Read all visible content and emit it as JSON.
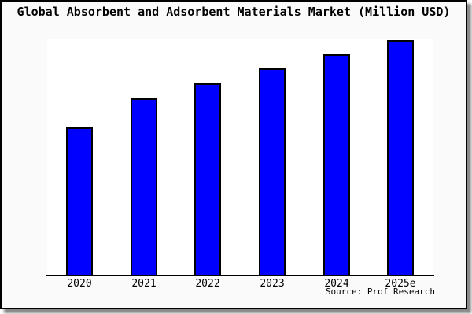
{
  "chart_data": {
    "type": "bar",
    "title": "Global Absorbent and Adsorbent Materials Market (Million USD)",
    "categories": [
      "2020",
      "2021",
      "2022",
      "2023",
      "2024",
      "2025e"
    ],
    "values": [
      188,
      225,
      244,
      263,
      281,
      299
    ],
    "value_note": "no value axis or data labels shown; values estimated as relative bar heights on 0-300 scale",
    "ylim": [
      0,
      300
    ],
    "xlabel": "",
    "ylabel": "",
    "grid": false,
    "legend": false,
    "source": "Source: Prof Research",
    "colors": {
      "bar_fill": "#0000ff",
      "bar_border": "#000000",
      "plot_background": "#ffffff",
      "figure_background": "#fafafa",
      "frame_border": "#000000",
      "axis_line": "#000000",
      "text": "#000000"
    }
  }
}
